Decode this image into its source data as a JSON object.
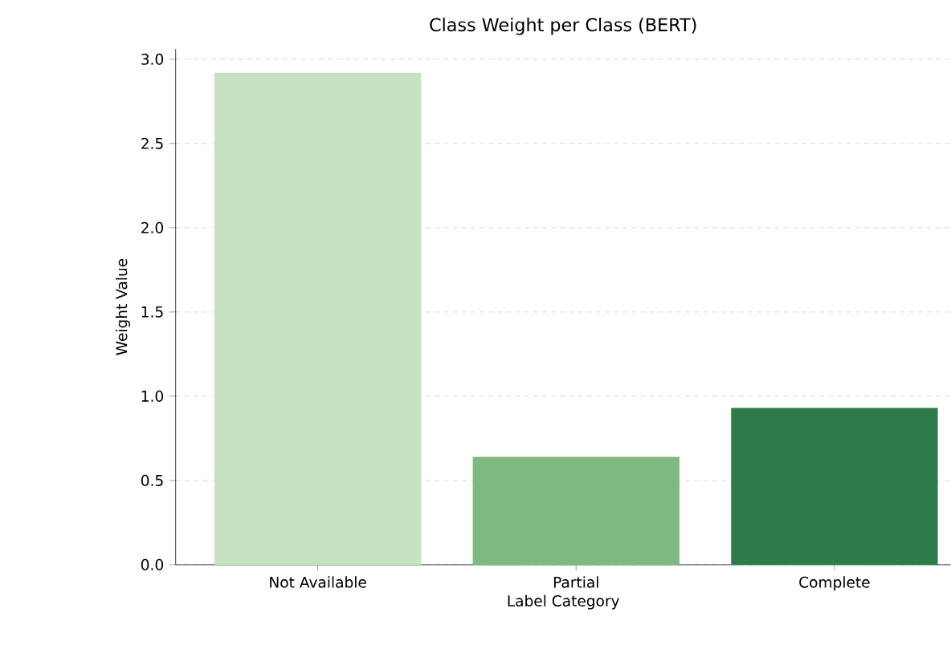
{
  "chart_data": {
    "type": "bar",
    "title": "Class Weight per Class (BERT)",
    "xlabel": "Label Category",
    "ylabel": "Weight Value",
    "categories": [
      "Not Available",
      "Partial",
      "Complete"
    ],
    "values": [
      2.92,
      0.64,
      0.93
    ],
    "colors": [
      "#c7e2c1",
      "#7eba7f",
      "#2e7b47"
    ],
    "ylim": [
      0,
      3.06
    ],
    "yticks": [
      {
        "value": 0,
        "label": "0.0"
      },
      0.5,
      {
        "value": 1,
        "label": "1.0"
      },
      1.5,
      {
        "value": 2,
        "label": "2.0"
      },
      2.5,
      {
        "value": 3,
        "label": "3.0"
      }
    ],
    "grid": "y"
  }
}
